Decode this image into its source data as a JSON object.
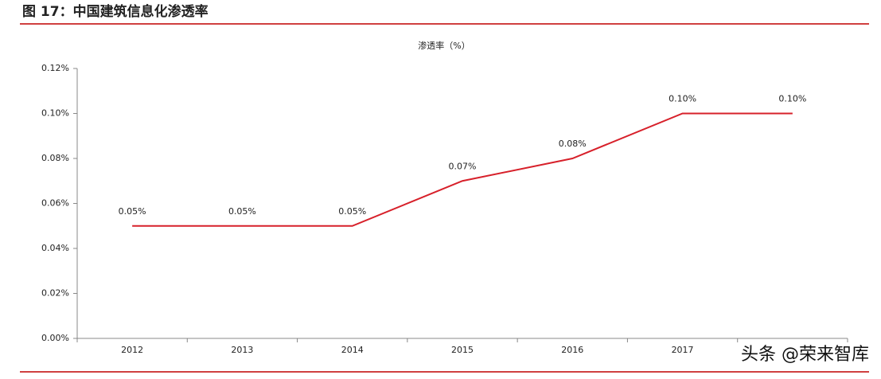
{
  "figure_title": "图 17：中国建筑信息化渗透率",
  "watermark": "头条 @荣来智库",
  "chart_data": {
    "type": "line",
    "title": "渗透率（%）",
    "categories": [
      "2012",
      "2013",
      "2014",
      "2015",
      "2016",
      "2017",
      null
    ],
    "values": [
      0.05,
      0.05,
      0.05,
      0.07,
      0.08,
      0.1,
      0.1
    ],
    "value_labels": [
      "0.05%",
      "0.05%",
      "0.05%",
      "0.07%",
      "0.08%",
      "0.10%",
      "0.10%"
    ],
    "color": "#d7202a",
    "ylim": [
      0,
      0.12
    ],
    "yticks": [
      {
        "value": 0,
        "label": "0.00%"
      },
      {
        "value": 0.02,
        "label": "0.02%"
      },
      {
        "value": 0.04,
        "label": "0.04%"
      },
      {
        "value": 0.06,
        "label": "0.06%"
      },
      {
        "value": 0.08,
        "label": "0.08%"
      },
      {
        "value": 0.1,
        "label": "0.10%"
      },
      {
        "value": 0.12,
        "label": "0.12%"
      }
    ],
    "grid": false
  }
}
